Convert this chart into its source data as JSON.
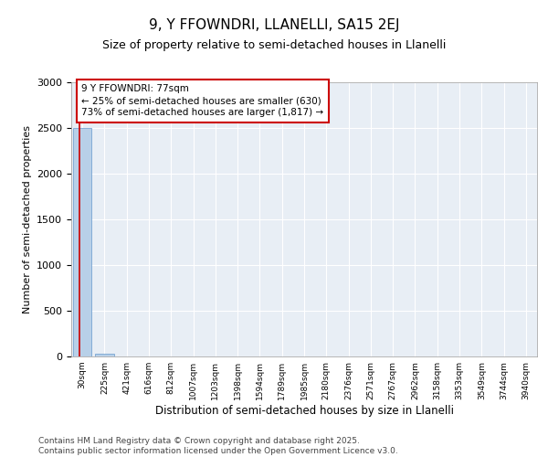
{
  "title": "9, Y FFOWNDRI, LLANELLI, SA15 2EJ",
  "subtitle": "Size of property relative to semi-detached houses in Llanelli",
  "xlabel": "Distribution of semi-detached houses by size in Llanelli",
  "ylabel": "Number of semi-detached properties",
  "categories": [
    "30sqm",
    "225sqm",
    "421sqm",
    "616sqm",
    "812sqm",
    "1007sqm",
    "1203sqm",
    "1398sqm",
    "1594sqm",
    "1789sqm",
    "1985sqm",
    "2180sqm",
    "2376sqm",
    "2571sqm",
    "2767sqm",
    "2962sqm",
    "3158sqm",
    "3353sqm",
    "3549sqm",
    "3744sqm",
    "3940sqm"
  ],
  "values": [
    2500,
    30,
    0,
    0,
    0,
    0,
    0,
    0,
    0,
    0,
    0,
    0,
    0,
    0,
    0,
    0,
    0,
    0,
    0,
    0,
    0
  ],
  "bar_color": "#b8d0e8",
  "bar_edgecolor": "#6699cc",
  "ylim": [
    0,
    3000
  ],
  "yticks": [
    0,
    500,
    1000,
    1500,
    2000,
    2500,
    3000
  ],
  "annotation_text": "9 Y FFOWNDRI: 77sqm\n← 25% of semi-detached houses are smaller (630)\n73% of semi-detached houses are larger (1,817) →",
  "annotation_box_color": "#cc0000",
  "background_color": "#e8eef5",
  "footer_line1": "Contains HM Land Registry data © Crown copyright and database right 2025.",
  "footer_line2": "Contains public sector information licensed under the Open Government Licence v3.0."
}
